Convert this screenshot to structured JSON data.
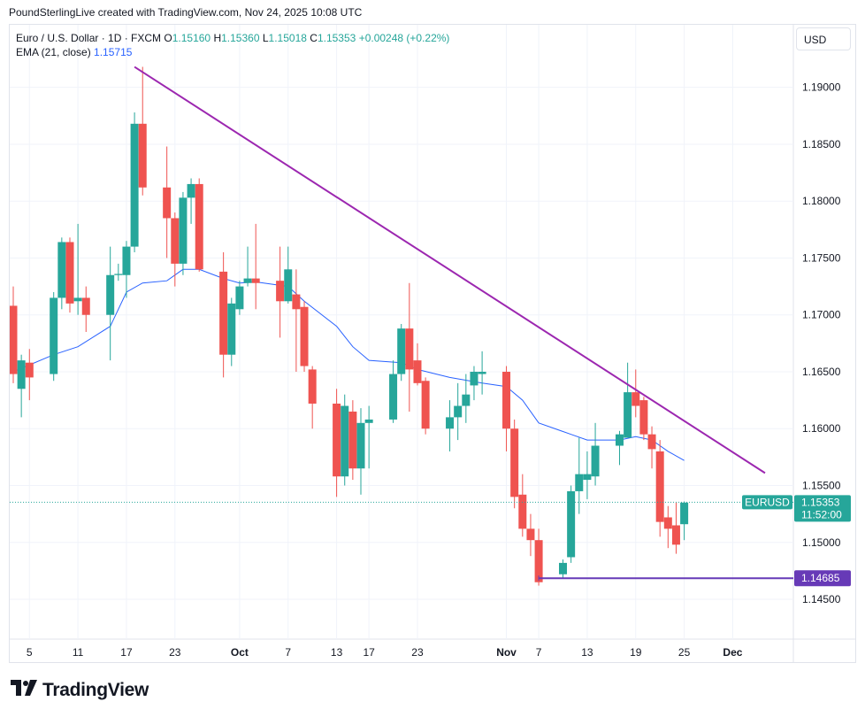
{
  "header": {
    "text": "PoundSterlingLive created with TradingView.com, Nov 24, 2025 10:08 UTC"
  },
  "legend": {
    "symbol": "Euro / U.S. Dollar · 1D · FXCM",
    "open_label": "O",
    "open": "1.15160",
    "high_label": "H",
    "high": "1.15360",
    "low_label": "L",
    "low": "1.15018",
    "close_label": "C",
    "close": "1.15353",
    "change": "+0.00248 (+0.22%)",
    "ema_label": "EMA (21, close)",
    "ema_value": "1.15715"
  },
  "currency": "USD",
  "logo": {
    "text": "TradingView",
    "icon": "tradingview-logo-icon"
  },
  "colors": {
    "up": "#26a69a",
    "down": "#ef5350",
    "ema": "#2962ff",
    "trendline": "#9c27b0",
    "support": "#673ab7"
  },
  "chart_data": {
    "type": "candlestick",
    "y_ticks": [
      "1.19000",
      "1.18500",
      "1.18000",
      "1.17500",
      "1.17000",
      "1.16500",
      "1.16000",
      "1.15500",
      "1.15000",
      "1.14500"
    ],
    "y_tick_values": [
      1.19,
      1.185,
      1.18,
      1.175,
      1.17,
      1.165,
      1.16,
      1.155,
      1.15,
      1.145
    ],
    "ylim": [
      1.1415,
      1.1955
    ],
    "x_ticks": [
      {
        "label": "5",
        "date": "2025-09-05"
      },
      {
        "label": "11",
        "date": "2025-09-11"
      },
      {
        "label": "17",
        "date": "2025-09-17"
      },
      {
        "label": "23",
        "date": "2025-09-23"
      },
      {
        "label": "Oct",
        "date": "2025-10-01",
        "bold": true
      },
      {
        "label": "7",
        "date": "2025-10-07"
      },
      {
        "label": "13",
        "date": "2025-10-13"
      },
      {
        "label": "17",
        "date": "2025-10-17"
      },
      {
        "label": "23",
        "date": "2025-10-23"
      },
      {
        "label": "Nov",
        "date": "2025-11-03",
        "bold": true
      },
      {
        "label": "7",
        "date": "2025-11-07"
      },
      {
        "label": "13",
        "date": "2025-11-13"
      },
      {
        "label": "19",
        "date": "2025-11-19"
      },
      {
        "label": "25",
        "date": "2025-11-25"
      },
      {
        "label": "Dec",
        "date": "2025-12-01",
        "bold": true
      }
    ],
    "x_domain": [
      "2025-09-03",
      "2025-12-05"
    ],
    "candles": [
      {
        "date": "2025-09-03",
        "o": 1.1708,
        "h": 1.1725,
        "l": 1.164,
        "c": 1.1648
      },
      {
        "date": "2025-09-04",
        "o": 1.1635,
        "h": 1.1665,
        "l": 1.161,
        "c": 1.166
      },
      {
        "date": "2025-09-05",
        "o": 1.1658,
        "h": 1.167,
        "l": 1.1625,
        "c": 1.1645
      },
      {
        "date": "2025-09-08",
        "o": 1.1648,
        "h": 1.172,
        "l": 1.1642,
        "c": 1.1715
      },
      {
        "date": "2025-09-09",
        "o": 1.1715,
        "h": 1.1768,
        "l": 1.1705,
        "c": 1.1764
      },
      {
        "date": "2025-09-10",
        "o": 1.1764,
        "h": 1.1768,
        "l": 1.1702,
        "c": 1.171
      },
      {
        "date": "2025-09-11",
        "o": 1.1712,
        "h": 1.178,
        "l": 1.17,
        "c": 1.1715
      },
      {
        "date": "2025-09-12",
        "o": 1.1715,
        "h": 1.1725,
        "l": 1.1685,
        "c": 1.17
      },
      {
        "date": "2025-09-15",
        "o": 1.17,
        "h": 1.176,
        "l": 1.166,
        "c": 1.1735
      },
      {
        "date": "2025-09-16",
        "o": 1.1735,
        "h": 1.1745,
        "l": 1.173,
        "c": 1.1736
      },
      {
        "date": "2025-09-17",
        "o": 1.1735,
        "h": 1.1765,
        "l": 1.1715,
        "c": 1.176
      },
      {
        "date": "2025-09-18",
        "o": 1.176,
        "h": 1.1878,
        "l": 1.1755,
        "c": 1.1868
      },
      {
        "date": "2025-09-19",
        "o": 1.1868,
        "h": 1.1918,
        "l": 1.1805,
        "c": 1.1812
      },
      {
        "date": "2025-09-22",
        "o": 1.1812,
        "h": 1.1848,
        "l": 1.175,
        "c": 1.1785
      },
      {
        "date": "2025-09-23",
        "o": 1.1785,
        "h": 1.179,
        "l": 1.1725,
        "c": 1.1745
      },
      {
        "date": "2025-09-24",
        "o": 1.1745,
        "h": 1.1808,
        "l": 1.1735,
        "c": 1.1803
      },
      {
        "date": "2025-09-25",
        "o": 1.1803,
        "h": 1.182,
        "l": 1.178,
        "c": 1.1815
      },
      {
        "date": "2025-09-26",
        "o": 1.1815,
        "h": 1.182,
        "l": 1.1738,
        "c": 1.174
      },
      {
        "date": "2025-09-29",
        "o": 1.1738,
        "h": 1.1755,
        "l": 1.1645,
        "c": 1.1665
      },
      {
        "date": "2025-09-30",
        "o": 1.1665,
        "h": 1.1715,
        "l": 1.1655,
        "c": 1.171
      },
      {
        "date": "2025-10-01",
        "o": 1.1705,
        "h": 1.173,
        "l": 1.17,
        "c": 1.1725
      },
      {
        "date": "2025-10-02",
        "o": 1.1728,
        "h": 1.176,
        "l": 1.1725,
        "c": 1.1732
      },
      {
        "date": "2025-10-03",
        "o": 1.1732,
        "h": 1.178,
        "l": 1.1705,
        "c": 1.1728
      },
      {
        "date": "2025-10-06",
        "o": 1.173,
        "h": 1.176,
        "l": 1.168,
        "c": 1.1712
      },
      {
        "date": "2025-10-07",
        "o": 1.1712,
        "h": 1.176,
        "l": 1.171,
        "c": 1.174
      },
      {
        "date": "2025-10-08",
        "o": 1.1718,
        "h": 1.174,
        "l": 1.165,
        "c": 1.1705
      },
      {
        "date": "2025-10-09",
        "o": 1.1707,
        "h": 1.1712,
        "l": 1.165,
        "c": 1.1655
      },
      {
        "date": "2025-10-10",
        "o": 1.1652,
        "h": 1.1655,
        "l": 1.16,
        "c": 1.1622
      },
      {
        "date": "2025-10-13",
        "o": 1.1622,
        "h": 1.1635,
        "l": 1.154,
        "c": 1.1558
      },
      {
        "date": "2025-10-14",
        "o": 1.1558,
        "h": 1.163,
        "l": 1.155,
        "c": 1.162
      },
      {
        "date": "2025-10-15",
        "o": 1.1615,
        "h": 1.1625,
        "l": 1.1555,
        "c": 1.1565
      },
      {
        "date": "2025-10-16",
        "o": 1.1565,
        "h": 1.1618,
        "l": 1.1542,
        "c": 1.1605
      },
      {
        "date": "2025-10-17",
        "o": 1.1605,
        "h": 1.162,
        "l": 1.1565,
        "c": 1.1608
      },
      {
        "date": "2025-10-20",
        "o": 1.1608,
        "h": 1.166,
        "l": 1.1605,
        "c": 1.1648
      },
      {
        "date": "2025-10-21",
        "o": 1.1648,
        "h": 1.1692,
        "l": 1.1642,
        "c": 1.1688
      },
      {
        "date": "2025-10-22",
        "o": 1.1688,
        "h": 1.1728,
        "l": 1.1615,
        "c": 1.1652
      },
      {
        "date": "2025-10-23",
        "o": 1.166,
        "h": 1.1675,
        "l": 1.1638,
        "c": 1.164
      },
      {
        "date": "2025-10-24",
        "o": 1.1642,
        "h": 1.1645,
        "l": 1.1595,
        "c": 1.16
      },
      {
        "date": "2025-10-27",
        "o": 1.16,
        "h": 1.1625,
        "l": 1.158,
        "c": 1.161
      },
      {
        "date": "2025-10-28",
        "o": 1.161,
        "h": 1.164,
        "l": 1.159,
        "c": 1.162
      },
      {
        "date": "2025-10-29",
        "o": 1.162,
        "h": 1.1648,
        "l": 1.1605,
        "c": 1.163
      },
      {
        "date": "2025-10-30",
        "o": 1.1638,
        "h": 1.1655,
        "l": 1.1625,
        "c": 1.165
      },
      {
        "date": "2025-10-31",
        "o": 1.1648,
        "h": 1.1668,
        "l": 1.163,
        "c": 1.165
      },
      {
        "date": "2025-11-03",
        "o": 1.165,
        "h": 1.1655,
        "l": 1.158,
        "c": 1.16
      },
      {
        "date": "2025-11-04",
        "o": 1.16,
        "h": 1.1608,
        "l": 1.153,
        "c": 1.154
      },
      {
        "date": "2025-11-05",
        "o": 1.1542,
        "h": 1.156,
        "l": 1.1505,
        "c": 1.1512
      },
      {
        "date": "2025-11-06",
        "o": 1.1512,
        "h": 1.1525,
        "l": 1.1488,
        "c": 1.1502
      },
      {
        "date": "2025-11-07",
        "o": 1.1502,
        "h": 1.1512,
        "l": 1.1462,
        "c": 1.1465
      },
      {
        "date": "2025-11-10",
        "o": 1.1472,
        "h": 1.1485,
        "l": 1.1468,
        "c": 1.1482
      },
      {
        "date": "2025-11-11",
        "o": 1.1487,
        "h": 1.155,
        "l": 1.1482,
        "c": 1.1545
      },
      {
        "date": "2025-11-12",
        "o": 1.1545,
        "h": 1.1592,
        "l": 1.1525,
        "c": 1.156
      },
      {
        "date": "2025-11-13",
        "o": 1.1555,
        "h": 1.158,
        "l": 1.1538,
        "c": 1.156
      },
      {
        "date": "2025-11-14",
        "o": 1.1558,
        "h": 1.1605,
        "l": 1.155,
        "c": 1.1585
      },
      {
        "date": "2025-11-17",
        "o": 1.1585,
        "h": 1.1598,
        "l": 1.1568,
        "c": 1.1595
      },
      {
        "date": "2025-11-18",
        "o": 1.1592,
        "h": 1.1658,
        "l": 1.1592,
        "c": 1.1632
      },
      {
        "date": "2025-11-19",
        "o": 1.1632,
        "h": 1.1652,
        "l": 1.161,
        "c": 1.162
      },
      {
        "date": "2025-11-20",
        "o": 1.1625,
        "h": 1.1628,
        "l": 1.159,
        "c": 1.1595
      },
      {
        "date": "2025-11-21",
        "o": 1.1595,
        "h": 1.1602,
        "l": 1.1565,
        "c": 1.1582
      },
      {
        "date": "2025-11-22",
        "o": 1.158,
        "h": 1.159,
        "l": 1.1505,
        "c": 1.1518
      },
      {
        "date": "2025-11-23",
        "o": 1.1522,
        "h": 1.1532,
        "l": 1.1495,
        "c": 1.1512
      },
      {
        "date": "2025-11-24",
        "o": 1.1515,
        "h": 1.1535,
        "l": 1.149,
        "c": 1.1498
      },
      {
        "date": "2025-11-25",
        "o": 1.1516,
        "h": 1.1536,
        "l": 1.1502,
        "c": 1.1535
      }
    ],
    "ema": {
      "label": "EMA (21, close)",
      "points": [
        {
          "date": "2025-09-03",
          "v": 1.165
        },
        {
          "date": "2025-09-08",
          "v": 1.1665
        },
        {
          "date": "2025-09-11",
          "v": 1.1672
        },
        {
          "date": "2025-09-15",
          "v": 1.169
        },
        {
          "date": "2025-09-17",
          "v": 1.172
        },
        {
          "date": "2025-09-19",
          "v": 1.1728
        },
        {
          "date": "2025-09-22",
          "v": 1.173
        },
        {
          "date": "2025-09-24",
          "v": 1.174
        },
        {
          "date": "2025-09-26",
          "v": 1.174
        },
        {
          "date": "2025-09-29",
          "v": 1.1732
        },
        {
          "date": "2025-10-01",
          "v": 1.1728
        },
        {
          "date": "2025-10-03",
          "v": 1.1729
        },
        {
          "date": "2025-10-07",
          "v": 1.1725
        },
        {
          "date": "2025-10-09",
          "v": 1.1712
        },
        {
          "date": "2025-10-13",
          "v": 1.169
        },
        {
          "date": "2025-10-15",
          "v": 1.1672
        },
        {
          "date": "2025-10-17",
          "v": 1.166
        },
        {
          "date": "2025-10-21",
          "v": 1.1658
        },
        {
          "date": "2025-10-23",
          "v": 1.1652
        },
        {
          "date": "2025-10-27",
          "v": 1.1645
        },
        {
          "date": "2025-10-31",
          "v": 1.164
        },
        {
          "date": "2025-11-03",
          "v": 1.1637
        },
        {
          "date": "2025-11-05",
          "v": 1.1625
        },
        {
          "date": "2025-11-07",
          "v": 1.1605
        },
        {
          "date": "2025-11-11",
          "v": 1.1595
        },
        {
          "date": "2025-11-13",
          "v": 1.159
        },
        {
          "date": "2025-11-17",
          "v": 1.159
        },
        {
          "date": "2025-11-19",
          "v": 1.1593
        },
        {
          "date": "2025-11-21",
          "v": 1.159
        },
        {
          "date": "2025-11-23",
          "v": 1.158
        },
        {
          "date": "2025-11-25",
          "v": 1.1572
        }
      ]
    },
    "trendline": {
      "from": {
        "date": "2025-09-18",
        "v": 1.1918
      },
      "to": {
        "date": "2025-12-05",
        "v": 1.1561
      }
    },
    "support": {
      "from_date": "2025-11-07",
      "value": 1.14685,
      "label": "1.14685"
    },
    "last_price": {
      "value": 1.15353,
      "label": "1.15353",
      "symbol": "EURUSD",
      "countdown": "11:52:00"
    }
  }
}
